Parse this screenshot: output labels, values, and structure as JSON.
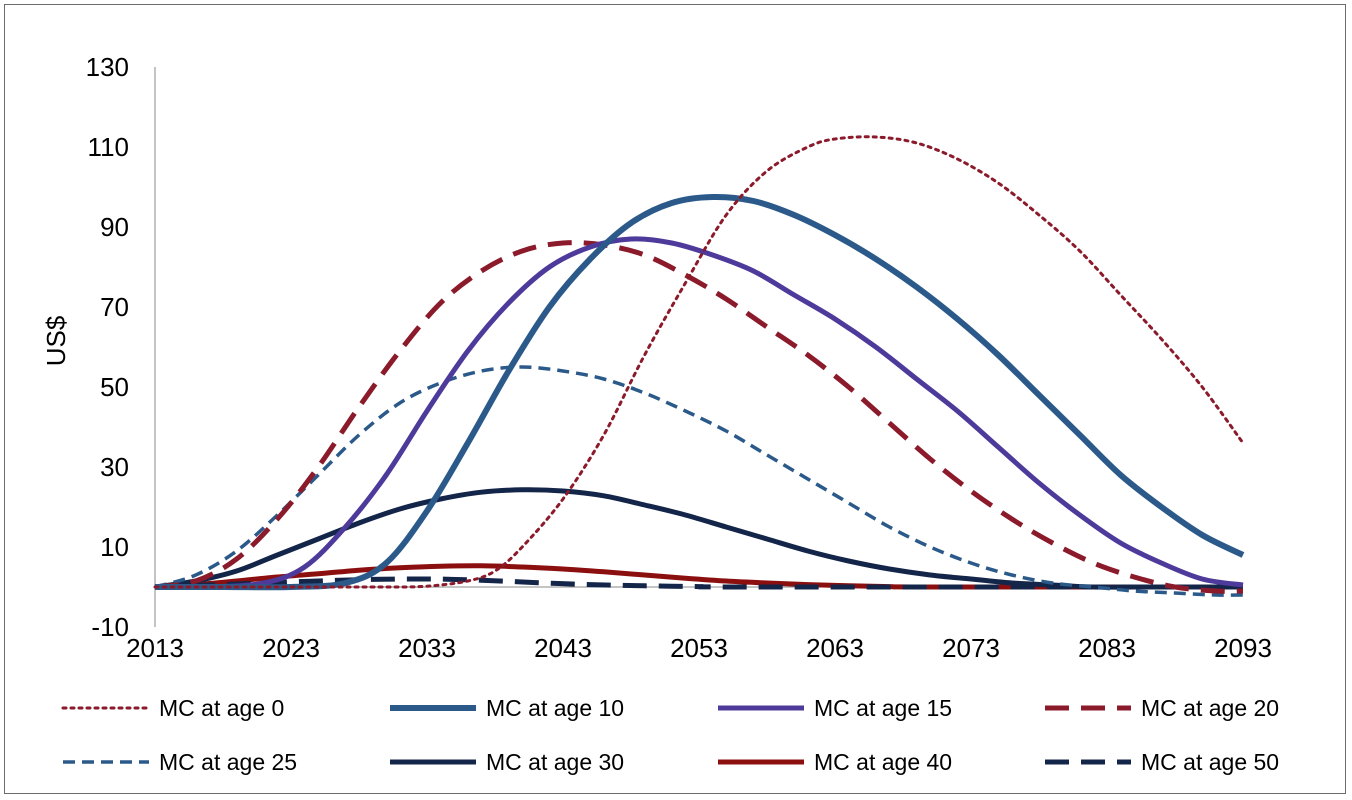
{
  "chart_data": {
    "type": "line",
    "title": "",
    "xlabel": "",
    "ylabel": "US$",
    "xlim": [
      2013,
      2093
    ],
    "ylim": [
      -10,
      130
    ],
    "x_ticks": [
      2013,
      2023,
      2033,
      2043,
      2053,
      2063,
      2073,
      2083,
      2093
    ],
    "y_ticks": [
      -10,
      10,
      30,
      50,
      70,
      90,
      110,
      130
    ],
    "grid": false,
    "legend": "bottom",
    "series": [
      {
        "name": "MC at age 0",
        "color": "#8b1a2b",
        "style": "dotted",
        "points": [
          [
            2013,
            0
          ],
          [
            2020,
            0
          ],
          [
            2025,
            0
          ],
          [
            2030,
            0
          ],
          [
            2033,
            0.2
          ],
          [
            2036,
            1.5
          ],
          [
            2038,
            4
          ],
          [
            2040,
            10
          ],
          [
            2043,
            22
          ],
          [
            2046,
            38
          ],
          [
            2049,
            58
          ],
          [
            2052,
            76
          ],
          [
            2055,
            93
          ],
          [
            2058,
            104
          ],
          [
            2061,
            110
          ],
          [
            2063,
            112
          ],
          [
            2066,
            112.5
          ],
          [
            2069,
            111
          ],
          [
            2072,
            107
          ],
          [
            2075,
            101
          ],
          [
            2078,
            93
          ],
          [
            2081,
            84
          ],
          [
            2084,
            73
          ],
          [
            2087,
            62
          ],
          [
            2090,
            50
          ],
          [
            2093,
            36
          ]
        ]
      },
      {
        "name": "MC at age 10",
        "color": "#2b5a8a",
        "style": "solid-thick",
        "points": [
          [
            2013,
            0
          ],
          [
            2018,
            0
          ],
          [
            2023,
            0
          ],
          [
            2027,
            1
          ],
          [
            2030,
            6
          ],
          [
            2033,
            19
          ],
          [
            2036,
            36
          ],
          [
            2039,
            54
          ],
          [
            2042,
            70
          ],
          [
            2045,
            82
          ],
          [
            2048,
            91
          ],
          [
            2051,
            96
          ],
          [
            2054,
            97.5
          ],
          [
            2057,
            96.5
          ],
          [
            2060,
            93
          ],
          [
            2063,
            88
          ],
          [
            2066,
            82
          ],
          [
            2069,
            75
          ],
          [
            2072,
            67
          ],
          [
            2075,
            58
          ],
          [
            2078,
            48
          ],
          [
            2081,
            38
          ],
          [
            2084,
            28
          ],
          [
            2087,
            20
          ],
          [
            2090,
            13
          ],
          [
            2093,
            8
          ]
        ]
      },
      {
        "name": "MC at age 15",
        "color": "#4d3a9a",
        "style": "solid",
        "points": [
          [
            2013,
            0
          ],
          [
            2017,
            0
          ],
          [
            2021,
            1
          ],
          [
            2024,
            5
          ],
          [
            2027,
            15
          ],
          [
            2030,
            28
          ],
          [
            2033,
            44
          ],
          [
            2036,
            59
          ],
          [
            2039,
            71
          ],
          [
            2042,
            80
          ],
          [
            2045,
            85
          ],
          [
            2048,
            87
          ],
          [
            2051,
            86
          ],
          [
            2054,
            83
          ],
          [
            2057,
            79
          ],
          [
            2060,
            73
          ],
          [
            2063,
            67
          ],
          [
            2066,
            60
          ],
          [
            2069,
            52
          ],
          [
            2072,
            44
          ],
          [
            2075,
            35
          ],
          [
            2078,
            26
          ],
          [
            2081,
            18
          ],
          [
            2084,
            11
          ],
          [
            2087,
            6
          ],
          [
            2090,
            2
          ],
          [
            2093,
            0.5
          ]
        ]
      },
      {
        "name": "MC at age 20",
        "color": "#8b1a2b",
        "style": "dashed",
        "points": [
          [
            2013,
            0
          ],
          [
            2016,
            1.5
          ],
          [
            2019,
            7
          ],
          [
            2022,
            17
          ],
          [
            2025,
            30
          ],
          [
            2028,
            45
          ],
          [
            2031,
            59
          ],
          [
            2034,
            71
          ],
          [
            2037,
            79
          ],
          [
            2040,
            84
          ],
          [
            2043,
            86
          ],
          [
            2046,
            85.5
          ],
          [
            2049,
            83
          ],
          [
            2052,
            78
          ],
          [
            2055,
            72
          ],
          [
            2058,
            65
          ],
          [
            2061,
            58
          ],
          [
            2064,
            50
          ],
          [
            2067,
            41
          ],
          [
            2070,
            32
          ],
          [
            2073,
            24
          ],
          [
            2076,
            17
          ],
          [
            2079,
            11
          ],
          [
            2082,
            6
          ],
          [
            2085,
            2.5
          ],
          [
            2088,
            0
          ],
          [
            2091,
            -1
          ],
          [
            2093,
            -1
          ]
        ]
      },
      {
        "name": "MC at age 25",
        "color": "#2b5a8a",
        "style": "dashed-thin",
        "points": [
          [
            2013,
            0
          ],
          [
            2016,
            3
          ],
          [
            2019,
            9
          ],
          [
            2022,
            18
          ],
          [
            2025,
            28
          ],
          [
            2028,
            38
          ],
          [
            2031,
            46
          ],
          [
            2034,
            51
          ],
          [
            2037,
            54
          ],
          [
            2040,
            55
          ],
          [
            2043,
            54
          ],
          [
            2046,
            52
          ],
          [
            2049,
            48.5
          ],
          [
            2052,
            44
          ],
          [
            2055,
            39
          ],
          [
            2058,
            33
          ],
          [
            2061,
            27
          ],
          [
            2064,
            21
          ],
          [
            2067,
            15
          ],
          [
            2070,
            10
          ],
          [
            2073,
            6
          ],
          [
            2076,
            3
          ],
          [
            2079,
            1
          ],
          [
            2082,
            0
          ],
          [
            2085,
            -1
          ],
          [
            2088,
            -1.5
          ],
          [
            2091,
            -2
          ],
          [
            2093,
            -2
          ]
        ]
      },
      {
        "name": "MC at age 30",
        "color": "#14254a",
        "style": "solid",
        "points": [
          [
            2013,
            0
          ],
          [
            2016,
            1.5
          ],
          [
            2019,
            4
          ],
          [
            2022,
            8
          ],
          [
            2025,
            12
          ],
          [
            2028,
            16
          ],
          [
            2031,
            19.5
          ],
          [
            2034,
            22
          ],
          [
            2037,
            23.7
          ],
          [
            2040,
            24.3
          ],
          [
            2043,
            24
          ],
          [
            2046,
            22.8
          ],
          [
            2049,
            20.5
          ],
          [
            2052,
            18
          ],
          [
            2055,
            15
          ],
          [
            2058,
            12
          ],
          [
            2061,
            9
          ],
          [
            2064,
            6.5
          ],
          [
            2067,
            4.5
          ],
          [
            2070,
            3
          ],
          [
            2073,
            2
          ],
          [
            2076,
            1
          ],
          [
            2079,
            0.5
          ],
          [
            2082,
            0
          ],
          [
            2085,
            0
          ],
          [
            2088,
            0
          ],
          [
            2093,
            0
          ]
        ]
      },
      {
        "name": "MC at age 40",
        "color": "#8b0f0f",
        "style": "solid",
        "points": [
          [
            2013,
            0
          ],
          [
            2016,
            0.6
          ],
          [
            2019,
            1.5
          ],
          [
            2022,
            2.5
          ],
          [
            2025,
            3.3
          ],
          [
            2028,
            4.2
          ],
          [
            2031,
            4.8
          ],
          [
            2034,
            5.2
          ],
          [
            2037,
            5.3
          ],
          [
            2040,
            5
          ],
          [
            2043,
            4.5
          ],
          [
            2046,
            3.8
          ],
          [
            2049,
            3
          ],
          [
            2052,
            2.2
          ],
          [
            2055,
            1.5
          ],
          [
            2058,
            1
          ],
          [
            2061,
            0.6
          ],
          [
            2064,
            0.3
          ],
          [
            2067,
            0.1
          ],
          [
            2070,
            0
          ],
          [
            2093,
            0
          ]
        ]
      },
      {
        "name": "MC at age 50",
        "color": "#14254a",
        "style": "dashed",
        "points": [
          [
            2013,
            0
          ],
          [
            2017,
            0.5
          ],
          [
            2021,
            1
          ],
          [
            2025,
            1.5
          ],
          [
            2029,
            1.9
          ],
          [
            2033,
            2
          ],
          [
            2037,
            1.7
          ],
          [
            2041,
            1.1
          ],
          [
            2045,
            0.6
          ],
          [
            2049,
            0.3
          ],
          [
            2053,
            0.1
          ],
          [
            2057,
            0
          ],
          [
            2093,
            0
          ]
        ]
      }
    ]
  }
}
